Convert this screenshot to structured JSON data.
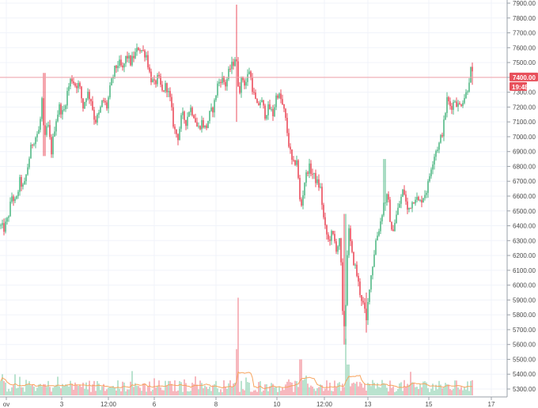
{
  "chart_data": {
    "type": "candlestick",
    "title": "",
    "xlabel": "",
    "ylabel": "",
    "ylim": [
      5250,
      7950
    ],
    "y_ticks": [
      "7900.00",
      "7800.00",
      "7700.00",
      "7600.00",
      "7500.00",
      "7400.00",
      "7300.00",
      "7200.00",
      "7100.00",
      "7000.00",
      "6900.00",
      "6800.00",
      "6700.00",
      "6600.00",
      "6500.00",
      "6400.00",
      "6300.00",
      "6200.00",
      "6100.00",
      "6000.00",
      "5900.00",
      "5800.00",
      "5700.00",
      "5600.00",
      "5500.00",
      "5400.00",
      "5300.00"
    ],
    "x_ticks": [
      "ov",
      "3",
      "12:00",
      "6",
      "8",
      "10",
      "12:00",
      "13",
      "15",
      "17"
    ],
    "price_line": {
      "value": 7400,
      "label": "7400.00",
      "time_label": "19:48",
      "color": "#f0a0a8",
      "badge_color": "#e8505b"
    },
    "colors": {
      "up": "#53b987",
      "down": "#eb4d5c",
      "volume_up": "#a9dcc3",
      "volume_down": "#f5a6ae",
      "volume_ma": "#f7a35c",
      "grid": "#f0f3fa"
    },
    "price_keypoints": [
      [
        0,
        6400
      ],
      [
        5,
        6380
      ],
      [
        10,
        6450
      ],
      [
        15,
        6600
      ],
      [
        20,
        6550
      ],
      [
        25,
        6700
      ],
      [
        30,
        6650
      ],
      [
        35,
        6800
      ],
      [
        40,
        6950
      ],
      [
        45,
        7000
      ],
      [
        50,
        7050
      ],
      [
        53,
        7250
      ],
      [
        56,
        6950
      ],
      [
        60,
        7100
      ],
      [
        65,
        6900
      ],
      [
        70,
        7100
      ],
      [
        75,
        7200
      ],
      [
        80,
        7150
      ],
      [
        85,
        7300
      ],
      [
        90,
        7400
      ],
      [
        95,
        7350
      ],
      [
        100,
        7350
      ],
      [
        105,
        7200
      ],
      [
        110,
        7300
      ],
      [
        115,
        7250
      ],
      [
        120,
        7100
      ],
      [
        125,
        7150
      ],
      [
        130,
        7250
      ],
      [
        135,
        7200
      ],
      [
        140,
        7350
      ],
      [
        145,
        7450
      ],
      [
        150,
        7500
      ],
      [
        155,
        7450
      ],
      [
        160,
        7550
      ],
      [
        165,
        7500
      ],
      [
        170,
        7550
      ],
      [
        175,
        7600
      ],
      [
        180,
        7580
      ],
      [
        185,
        7550
      ],
      [
        190,
        7400
      ],
      [
        195,
        7350
      ],
      [
        200,
        7400
      ],
      [
        205,
        7300
      ],
      [
        210,
        7350
      ],
      [
        215,
        7250
      ],
      [
        220,
        7050
      ],
      [
        225,
        7000
      ],
      [
        230,
        7150
      ],
      [
        235,
        7100
      ],
      [
        240,
        7200
      ],
      [
        245,
        7150
      ],
      [
        250,
        7050
      ],
      [
        255,
        7100
      ],
      [
        260,
        7050
      ],
      [
        265,
        7150
      ],
      [
        270,
        7200
      ],
      [
        275,
        7350
      ],
      [
        280,
        7400
      ],
      [
        285,
        7350
      ],
      [
        290,
        7450
      ],
      [
        295,
        7500
      ],
      [
        298,
        7550
      ],
      [
        302,
        7300
      ],
      [
        306,
        7400
      ],
      [
        310,
        7350
      ],
      [
        315,
        7450
      ],
      [
        320,
        7300
      ],
      [
        325,
        7200
      ],
      [
        330,
        7250
      ],
      [
        335,
        7150
      ],
      [
        340,
        7200
      ],
      [
        345,
        7150
      ],
      [
        350,
        7300
      ],
      [
        355,
        7250
      ],
      [
        360,
        7150
      ],
      [
        365,
        6950
      ],
      [
        370,
        6800
      ],
      [
        375,
        6850
      ],
      [
        380,
        6500
      ],
      [
        385,
        6700
      ],
      [
        390,
        6800
      ],
      [
        395,
        6750
      ],
      [
        400,
        6700
      ],
      [
        405,
        6650
      ],
      [
        410,
        6400
      ],
      [
        415,
        6300
      ],
      [
        420,
        6350
      ],
      [
        425,
        6250
      ],
      [
        430,
        6300
      ],
      [
        433,
        5800
      ],
      [
        436,
        5700
      ],
      [
        440,
        6400
      ],
      [
        445,
        6200
      ],
      [
        450,
        6100
      ],
      [
        455,
        5950
      ],
      [
        460,
        5850
      ],
      [
        463,
        5750
      ],
      [
        467,
        6000
      ],
      [
        470,
        6100
      ],
      [
        475,
        6300
      ],
      [
        480,
        6400
      ],
      [
        485,
        6550
      ],
      [
        490,
        6600
      ],
      [
        495,
        6350
      ],
      [
        500,
        6450
      ],
      [
        505,
        6550
      ],
      [
        510,
        6650
      ],
      [
        515,
        6500
      ],
      [
        520,
        6550
      ],
      [
        525,
        6600
      ],
      [
        530,
        6550
      ],
      [
        535,
        6600
      ],
      [
        540,
        6650
      ],
      [
        545,
        6800
      ],
      [
        550,
        6900
      ],
      [
        555,
        6950
      ],
      [
        560,
        7050
      ],
      [
        565,
        7250
      ],
      [
        570,
        7200
      ],
      [
        575,
        7250
      ],
      [
        580,
        7200
      ],
      [
        585,
        7250
      ],
      [
        590,
        7300
      ],
      [
        595,
        7450
      ],
      [
        598,
        7400
      ]
    ],
    "price_spikes": [
      {
        "x": 56,
        "high": 7430,
        "low": 6870
      },
      {
        "x": 299,
        "high": 7890,
        "low": 7100
      },
      {
        "x": 436,
        "high": 6480,
        "low": 5600
      },
      {
        "x": 463,
        "high": 5950,
        "low": 5680
      },
      {
        "x": 486,
        "high": 6850,
        "low": 6500
      },
      {
        "x": 597,
        "high": 7500,
        "low": 7350
      }
    ],
    "volume_spikes": [
      {
        "x": 301,
        "v": 0.95
      },
      {
        "x": 437,
        "v": 0.55
      },
      {
        "x": 380,
        "v": 0.35
      },
      {
        "x": 300,
        "v": 0.45
      },
      {
        "x": 440,
        "v": 0.3
      }
    ]
  }
}
